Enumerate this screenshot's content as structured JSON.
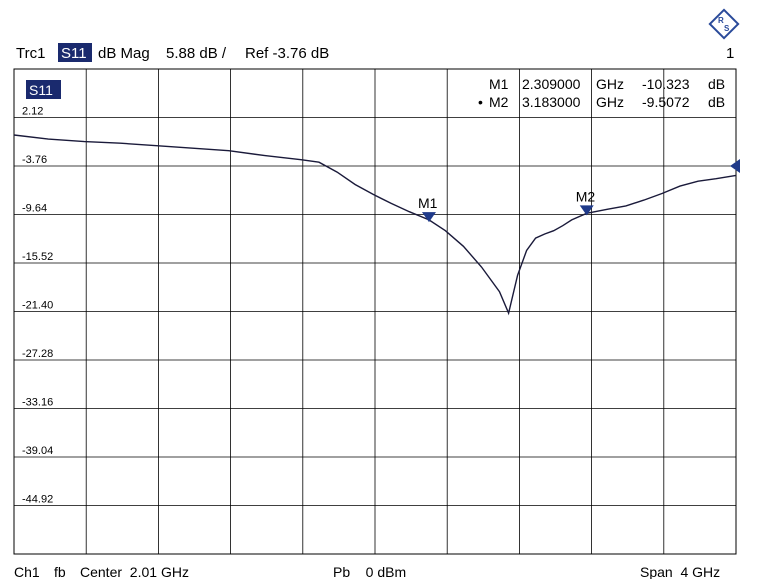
{
  "header": {
    "trace": "Trc1",
    "param": "S11",
    "format": "dB Mag",
    "scale": "5.88 dB /",
    "ref": "Ref -3.76 dB",
    "channel_number": "1"
  },
  "trace_badge": "S11",
  "markers": [
    {
      "id": "M1",
      "prefix": "",
      "freq": "2.309000",
      "unit": "GHz",
      "value": "-10.323",
      "value_unit": "dB"
    },
    {
      "id": "M2",
      "prefix": "•",
      "freq": "3.183000",
      "unit": "GHz",
      "value": "-9.5072",
      "value_unit": "dB"
    }
  ],
  "footer": {
    "channel": "Ch1",
    "fb": "fb",
    "center": "Center  2.01 GHz",
    "power": "Pb    0 dBm",
    "span": "Span  4 GHz"
  },
  "colors": {
    "trace": "#1a1a3a",
    "marker": "#1f3a8a",
    "badge_bg": "#1a2a6e",
    "grid": "#000000"
  },
  "logo_icon": "rohde-schwarz-logo-icon",
  "ref_icon": "reference-triangle-icon",
  "chart_data": {
    "type": "line",
    "title": "",
    "xlabel": "",
    "ylabel": "",
    "x_range_ghz": [
      0.01,
      4.01
    ],
    "ylim": [
      -50.8,
      8.0
    ],
    "ytick_labels": [
      "2.12",
      "-3.76",
      "-9.64",
      "-15.52",
      "-21.40",
      "-27.28",
      "-33.16",
      "-39.04",
      "-44.92"
    ],
    "ytick_values": [
      2.12,
      -3.76,
      -9.64,
      -15.52,
      -21.4,
      -27.28,
      -33.16,
      -39.04,
      -44.92
    ],
    "grid": true,
    "series": [
      {
        "x": [
          0.01,
          0.2,
          0.4,
          0.6,
          0.8,
          1.0,
          1.2,
          1.4,
          1.6,
          1.7,
          1.8,
          1.9,
          2.0,
          2.1,
          2.2,
          2.309,
          2.4,
          2.5,
          2.6,
          2.7,
          2.75,
          2.8,
          2.85,
          2.9,
          2.95,
          3.0,
          3.05,
          3.1,
          3.183,
          3.3,
          3.4,
          3.5,
          3.6,
          3.7,
          3.8,
          3.9,
          4.01
        ],
        "y": [
          0.0,
          -0.5,
          -0.8,
          -1.0,
          -1.3,
          -1.6,
          -1.9,
          -2.5,
          -3.0,
          -3.3,
          -4.5,
          -6.0,
          -7.2,
          -8.3,
          -9.3,
          -10.3,
          -11.6,
          -13.5,
          -16.0,
          -19.0,
          -21.6,
          -17.0,
          -14.0,
          -12.5,
          -12.0,
          -11.6,
          -11.0,
          -10.3,
          -9.5,
          -9.0,
          -8.6,
          -7.9,
          -7.1,
          -6.2,
          -5.6,
          -5.3,
          -4.9
        ]
      }
    ],
    "markers": [
      {
        "label": "M1",
        "x": 2.309,
        "y": -10.323
      },
      {
        "label": "M2",
        "x": 3.183,
        "y": -9.5072
      }
    ],
    "reference_value": -3.76
  }
}
